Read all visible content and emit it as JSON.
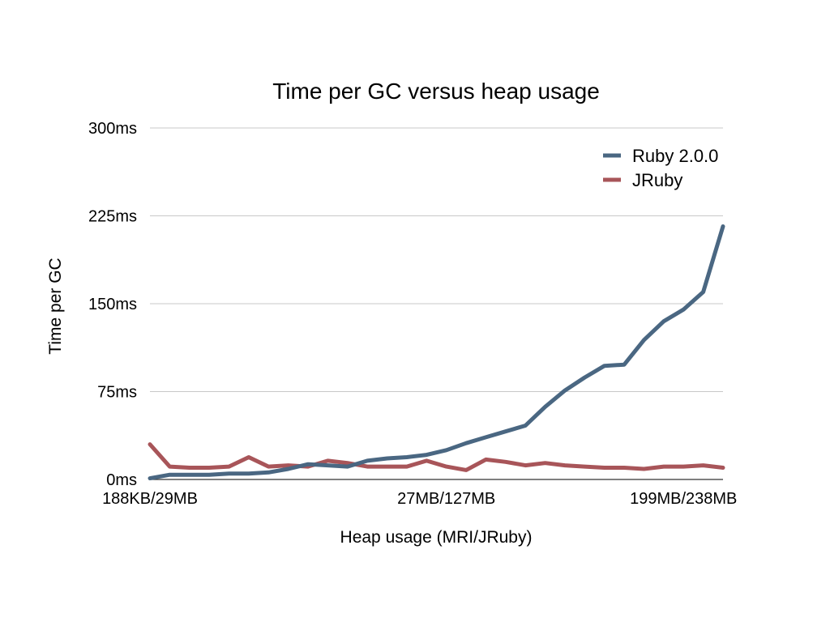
{
  "chart_data": {
    "type": "line",
    "title": "Time per GC versus heap usage",
    "xlabel": "Heap usage (MRI/JRuby)",
    "ylabel": "Time per GC",
    "ylim": [
      0,
      300
    ],
    "y_ticks": [
      {
        "value": 0,
        "label": "0ms"
      },
      {
        "value": 75,
        "label": "75ms"
      },
      {
        "value": 150,
        "label": "150ms"
      },
      {
        "value": 225,
        "label": "225ms"
      },
      {
        "value": 300,
        "label": "300ms"
      }
    ],
    "x_tick_labels": [
      {
        "index": 0,
        "label": "188KB/29MB"
      },
      {
        "index": 15,
        "label": "27MB/127MB"
      },
      {
        "index": 27,
        "label": "199MB/238MB"
      }
    ],
    "grid": true,
    "legend_position": "top-right",
    "series": [
      {
        "name": "Ruby 2.0.0",
        "color": "#4a6782",
        "values": [
          1,
          4,
          4,
          4,
          5,
          5,
          6,
          9,
          13,
          12,
          11,
          16,
          18,
          19,
          21,
          25,
          31,
          36,
          41,
          46,
          62,
          76,
          87,
          97,
          98,
          119,
          135,
          145,
          160,
          216
        ]
      },
      {
        "name": "JRuby",
        "color": "#a85559",
        "values": [
          30,
          11,
          10,
          10,
          11,
          19,
          11,
          12,
          11,
          16,
          14,
          11,
          11,
          11,
          16,
          11,
          8,
          17,
          15,
          12,
          14,
          12,
          11,
          10,
          10,
          9,
          11,
          11,
          12,
          10
        ]
      }
    ]
  }
}
